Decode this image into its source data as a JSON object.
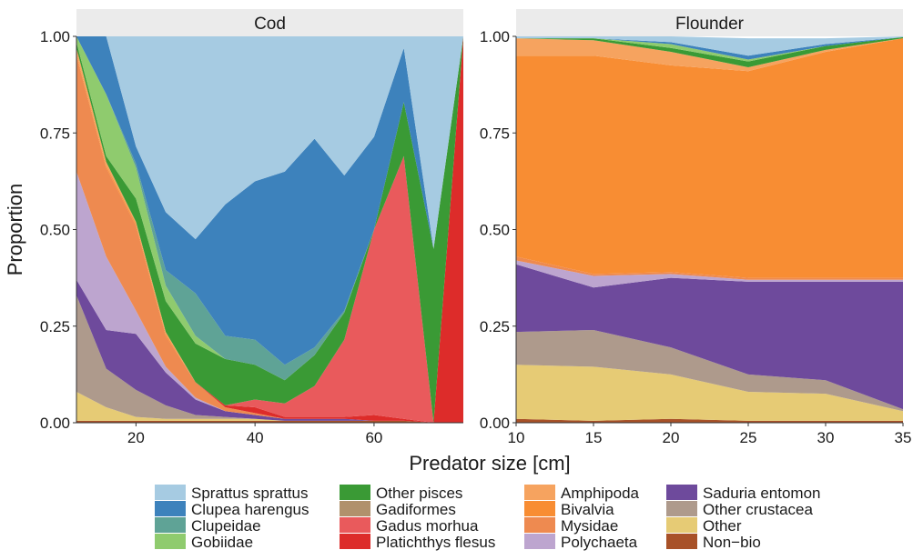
{
  "chart_data": {
    "type": "area",
    "stacked": true,
    "normalized": true,
    "xlabel": "Predator size [cm]",
    "ylabel": "Proportion",
    "ylim": [
      0,
      1
    ],
    "y_ticks": [
      0,
      0.25,
      0.5,
      0.75,
      1
    ],
    "y_tick_labels": [
      "0.00",
      "0.25",
      "0.50",
      "0.75",
      "1.00"
    ],
    "grid": false,
    "legend_position": "bottom",
    "categories": [
      "Non−bio",
      "Other",
      "Other crustacea",
      "Saduria entomon",
      "Polychaeta",
      "Mysidae",
      "Bivalvia",
      "Amphipoda",
      "Platichthys flesus",
      "Gadus morhua",
      "Gadiformes",
      "Other pisces",
      "Gobiidae",
      "Clupeidae",
      "Clupea harengus",
      "Sprattus sprattus"
    ],
    "colors": {
      "Sprattus sprattus": "#a6cbe2",
      "Clupea harengus": "#3d82bc",
      "Clupeidae": "#5fa396",
      "Gobiidae": "#8fcb6e",
      "Other pisces": "#3a9a35",
      "Gadiformes": "#b0916c",
      "Gadus morhua": "#e95a5c",
      "Platichthys flesus": "#dd2c2a",
      "Amphipoda": "#f6a35f",
      "Bivalvia": "#f88d33",
      "Mysidae": "#ee8a50",
      "Polychaeta": "#bda5cf",
      "Saduria entomon": "#6e4a9c",
      "Other crustacea": "#ae9a8c",
      "Other": "#e6cb75",
      "Non−bio": "#a85128"
    },
    "legend": {
      "columns": [
        [
          "Sprattus sprattus",
          "Clupea harengus",
          "Clupeidae",
          "Gobiidae"
        ],
        [
          "Other pisces",
          "Gadiformes",
          "Gadus morhua",
          "Platichthys flesus"
        ],
        [
          "Amphipoda",
          "Bivalvia",
          "Mysidae",
          "Polychaeta"
        ],
        [
          "Saduria entomon",
          "Other crustacea",
          "Other",
          "Non−bio"
        ]
      ]
    },
    "panels": [
      {
        "title": "Cod",
        "xlim": [
          10,
          75
        ],
        "x_ticks": [
          20,
          40,
          60
        ],
        "x_tick_labels": [
          "20",
          "40",
          "60"
        ],
        "x": [
          10,
          15,
          20,
          25,
          30,
          35,
          40,
          45,
          50,
          55,
          60,
          65,
          70,
          75
        ],
        "series": [
          {
            "name": "Non−bio",
            "values": [
              0.005,
              0.005,
              0.005,
              0.005,
              0.005,
              0.005,
              0.005,
              0.005,
              0.005,
              0.005,
              0.005,
              0.005,
              0,
              0
            ]
          },
          {
            "name": "Other",
            "values": [
              0.075,
              0.035,
              0.01,
              0.005,
              0.005,
              0.005,
              0.005,
              0,
              0,
              0,
              0,
              0,
              0,
              0
            ]
          },
          {
            "name": "Other crustacea",
            "values": [
              0.25,
              0.1,
              0.07,
              0.035,
              0.01,
              0.005,
              0,
              0,
              0,
              0,
              0,
              0,
              0,
              0
            ]
          },
          {
            "name": "Saduria entomon",
            "values": [
              0.04,
              0.1,
              0.145,
              0.085,
              0.04,
              0.015,
              0.01,
              0.005,
              0.005,
              0.005,
              0,
              0,
              0,
              0
            ]
          },
          {
            "name": "Polychaeta",
            "values": [
              0.28,
              0.19,
              0.06,
              0.015,
              0.005,
              0,
              0,
              0,
              0,
              0,
              0,
              0,
              0,
              0
            ]
          },
          {
            "name": "Mysidae",
            "values": [
              0.3,
              0.23,
              0.22,
              0.08,
              0.04,
              0.01,
              0.005,
              0,
              0,
              0,
              0,
              0,
              0,
              0
            ]
          },
          {
            "name": "Bivalvia",
            "values": [
              0.005,
              0.005,
              0.005,
              0.005,
              0,
              0,
              0,
              0,
              0,
              0,
              0,
              0,
              0,
              0
            ]
          },
          {
            "name": "Amphipoda",
            "values": [
              0.015,
              0.01,
              0.005,
              0.005,
              0,
              0,
              0,
              0,
              0,
              0,
              0,
              0,
              0,
              0
            ]
          },
          {
            "name": "Platichthys flesus",
            "values": [
              0,
              0,
              0,
              0,
              0,
              0.005,
              0.015,
              0.005,
              0.005,
              0.005,
              0.015,
              0.005,
              0,
              1
            ]
          },
          {
            "name": "Gadus morhua",
            "values": [
              0,
              0,
              0,
              0,
              0,
              0,
              0.02,
              0.035,
              0.08,
              0.2,
              0.48,
              0.68,
              0,
              0
            ]
          },
          {
            "name": "Gadiformes",
            "values": [
              0,
              0,
              0,
              0,
              0,
              0,
              0,
              0,
              0,
              0,
              0,
              0,
              0,
              0
            ]
          },
          {
            "name": "Other pisces",
            "values": [
              0.015,
              0.015,
              0.06,
              0.08,
              0.1,
              0.12,
              0.09,
              0.06,
              0.08,
              0.07,
              0,
              0.14,
              0.45,
              0
            ]
          },
          {
            "name": "Gobiidae",
            "values": [
              0.015,
              0.16,
              0.08,
              0.04,
              0.02,
              0,
              0,
              0,
              0,
              0,
              0,
              0,
              0,
              0
            ]
          },
          {
            "name": "Clupeidae",
            "values": [
              0,
              0,
              0.01,
              0.04,
              0.11,
              0.06,
              0.065,
              0.04,
              0.02,
              0.005,
              0,
              0,
              0,
              0
            ]
          },
          {
            "name": "Clupea harengus",
            "values": [
              0,
              0.15,
              0.045,
              0.15,
              0.14,
              0.34,
              0.41,
              0.5,
              0.54,
              0.35,
              0.24,
              0.14,
              0,
              0
            ]
          },
          {
            "name": "Sprattus sprattus",
            "values": [
              0,
              0,
              0.29,
              0.455,
              0.53,
              0.44,
              0.38,
              0.355,
              0.275,
              0.365,
              0.26,
              0.03,
              0.55,
              0
            ]
          }
        ]
      },
      {
        "title": "Flounder",
        "xlim": [
          10,
          35
        ],
        "x_ticks": [
          10,
          15,
          20,
          25,
          30,
          35
        ],
        "x_tick_labels": [
          "10",
          "15",
          "20",
          "25",
          "30",
          "35"
        ],
        "x": [
          10,
          15,
          20,
          25,
          30,
          35
        ],
        "series": [
          {
            "name": "Non−bio",
            "values": [
              0.01,
              0.005,
              0.01,
              0.005,
              0.005,
              0.005
            ]
          },
          {
            "name": "Other",
            "values": [
              0.14,
              0.14,
              0.115,
              0.075,
              0.07,
              0.025
            ]
          },
          {
            "name": "Other crustacea",
            "values": [
              0.085,
              0.095,
              0.07,
              0.045,
              0.035,
              0.005
            ]
          },
          {
            "name": "Saduria entomon",
            "values": [
              0.175,
              0.11,
              0.18,
              0.24,
              0.255,
              0.33
            ]
          },
          {
            "name": "Polychaeta",
            "values": [
              0.01,
              0.03,
              0.01,
              0.005,
              0.005,
              0.005
            ]
          },
          {
            "name": "Mysidae",
            "values": [
              0.01,
              0.005,
              0.005,
              0.005,
              0.005,
              0.005
            ]
          },
          {
            "name": "Bivalvia",
            "values": [
              0.52,
              0.565,
              0.535,
              0.535,
              0.585,
              0.62
            ]
          },
          {
            "name": "Amphipoda",
            "values": [
              0.045,
              0.04,
              0.035,
              0.01,
              0.005,
              0
            ]
          },
          {
            "name": "Platichthys flesus",
            "values": [
              0,
              0,
              0,
              0,
              0,
              0
            ]
          },
          {
            "name": "Gadus morhua",
            "values": [
              0,
              0,
              0,
              0,
              0,
              0
            ]
          },
          {
            "name": "Gadiformes",
            "values": [
              0,
              0,
              0,
              0,
              0,
              0
            ]
          },
          {
            "name": "Other pisces",
            "values": [
              0,
              0.005,
              0.01,
              0.015,
              0.01,
              0.003
            ]
          },
          {
            "name": "Gobiidae",
            "values": [
              0,
              0,
              0.01,
              0.005,
              0,
              0
            ]
          },
          {
            "name": "Clupeidae",
            "values": [
              0,
              0,
              0,
              0,
              0,
              0
            ]
          },
          {
            "name": "Clupea harengus",
            "values": [
              0,
              0,
              0.005,
              0.01,
              0.005,
              0
            ]
          },
          {
            "name": "Sprattus sprattus",
            "values": [
              0.005,
              0.005,
              0.015,
              0.045,
              0.015,
              0.002
            ]
          }
        ]
      }
    ]
  }
}
